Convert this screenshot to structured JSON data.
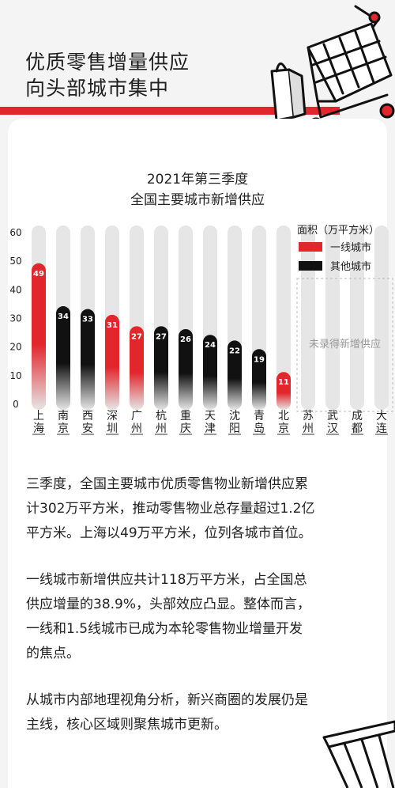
{
  "header": {
    "title_line1": "优质零售增量供应",
    "title_line2": "向头部城市集中"
  },
  "chart_data": {
    "type": "bar",
    "title": "2021年第三季度",
    "subtitle": "全国主要城市新增供应",
    "ylim": [
      0,
      60
    ],
    "yticks": [
      0,
      10,
      20,
      30,
      40,
      50,
      60
    ],
    "legend": {
      "title": "面积（万平方米）",
      "position": "top-right",
      "entries": [
        {
          "name": "一线城市",
          "color": "#e1262c"
        },
        {
          "name": "其他城市",
          "color": "#111111"
        }
      ]
    },
    "categories": [
      "上海",
      "南京",
      "西安",
      "深圳",
      "广州",
      "杭州",
      "重庆",
      "天津",
      "沈阳",
      "青岛",
      "北京",
      "苏州",
      "武汉",
      "成都",
      "大连"
    ],
    "values": [
      49,
      34,
      33,
      31,
      27,
      27,
      26,
      24,
      22,
      19,
      11,
      null,
      null,
      null,
      null
    ],
    "tier": [
      "一线城市",
      "其他城市",
      "其他城市",
      "一线城市",
      "一线城市",
      "其他城市",
      "其他城市",
      "其他城市",
      "其他城市",
      "其他城市",
      "一线城市",
      null,
      null,
      null,
      null
    ],
    "no_data_note": "未录得新增供应",
    "grid": false
  },
  "paragraphs": [
    [
      "三季度，全国主要城市优质零售物业新增供应累",
      "计302万平方米，推动零售物业总存量超过1.2亿",
      "平方米。上海以49万平方米，位列各城市首位。"
    ],
    [
      "一线城市新增供应共计118万平方米，占全国总",
      "供应增量的38.9%，头部效应凸显。整体而言，",
      "一线和1.5线城市已成为本轮零售物业增量开发",
      "的焦点。"
    ],
    [
      "从城市内部地理视角分析，新兴商圈的发展仍是",
      "主线，核心区域则聚焦城市更新。"
    ]
  ]
}
